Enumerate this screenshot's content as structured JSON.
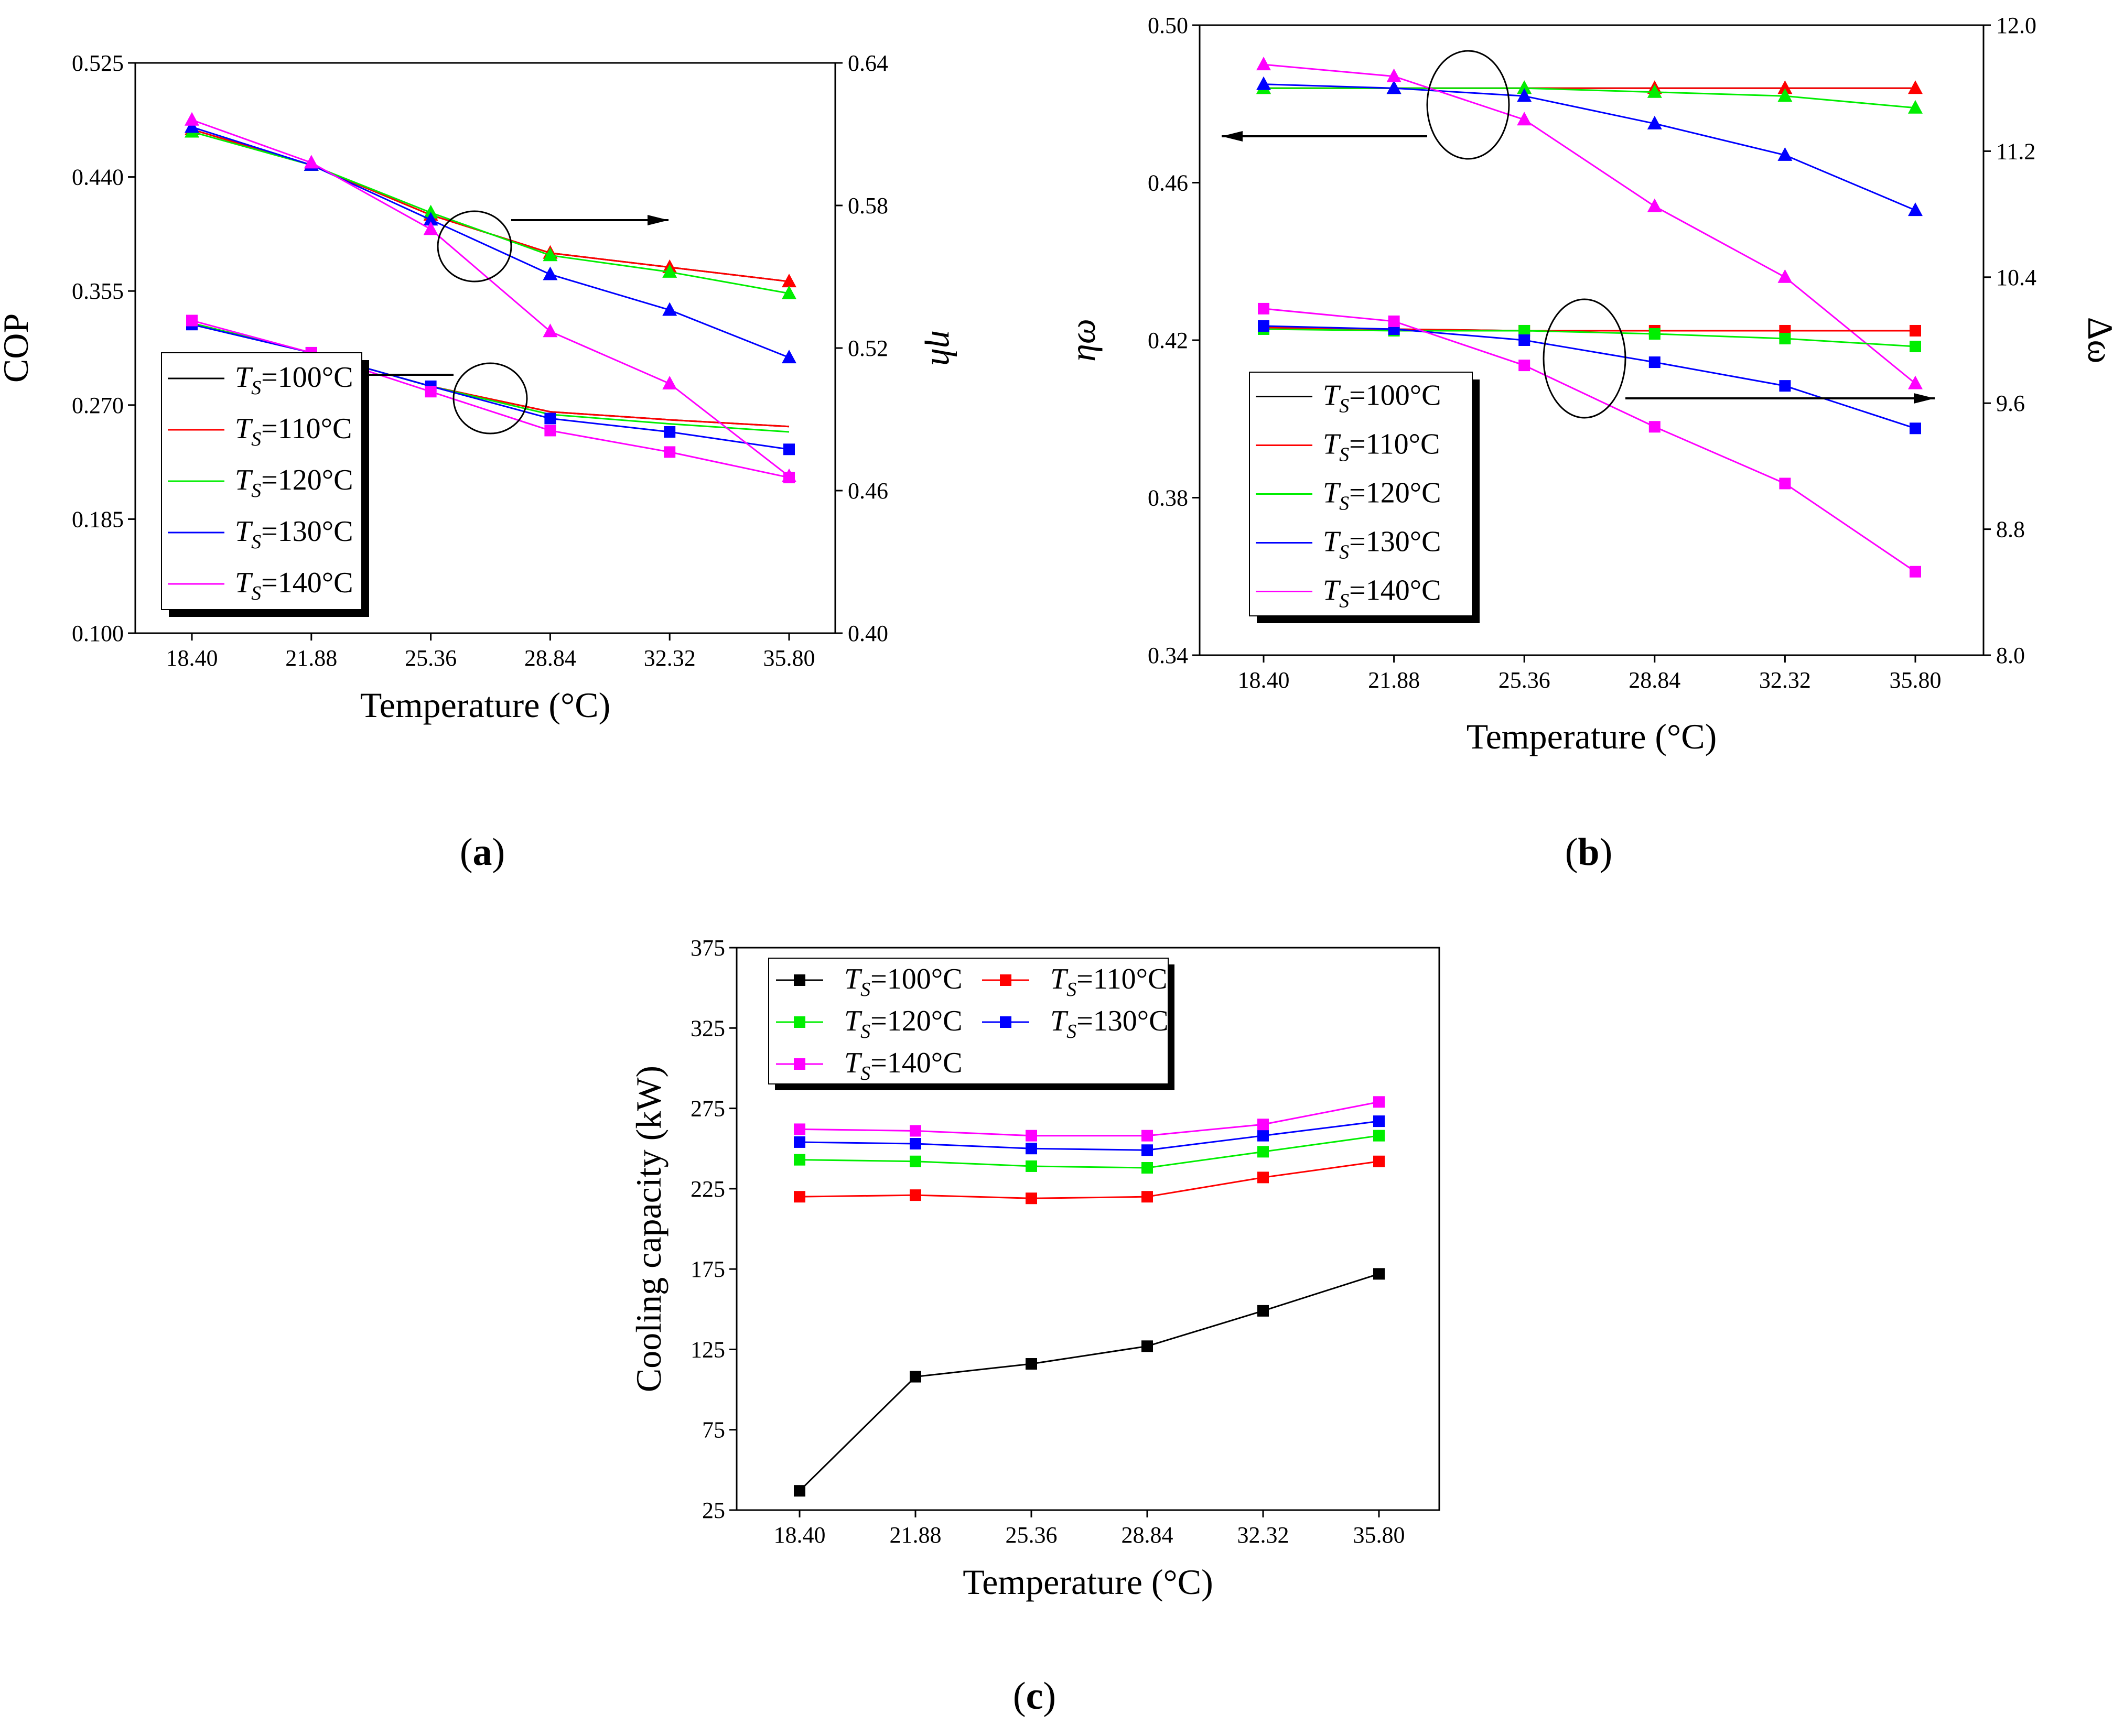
{
  "captions": [
    "a",
    "b",
    "c"
  ],
  "legend": {
    "prefix": "T",
    "subscript": "S",
    "labels": [
      "=100°C",
      "=110°C",
      "=120°C",
      "=130°C",
      "=140°C"
    ],
    "colors": [
      "#000000",
      "#ff0000",
      "#00ee00",
      "#0000ff",
      "#ff00ff"
    ]
  },
  "chart_data": [
    {
      "id": "a",
      "type": "line",
      "xlabel": "Temperature (°C)",
      "ylabel": "COP",
      "y2label": "ηh",
      "categories": [
        "18.40",
        "21.88",
        "25.36",
        "28.84",
        "32.32",
        "35.80"
      ],
      "ylim": [
        0.1,
        0.525
      ],
      "yticks": [
        "0.100",
        "0.185",
        "0.270",
        "0.355",
        "0.440",
        "0.525"
      ],
      "y2lim": [
        0.4,
        0.64
      ],
      "y2ticks": [
        "0.40",
        "0.46",
        "0.52",
        "0.58",
        "0.64"
      ],
      "series_left": [
        {
          "name": "100°C",
          "marker": "none",
          "values": [
            0.331,
            0.309,
            0.284,
            0.265,
            0.259,
            0.254
          ]
        },
        {
          "name": "110°C",
          "marker": "none",
          "values": [
            0.331,
            0.309,
            0.284,
            0.265,
            0.259,
            0.254
          ]
        },
        {
          "name": "120°C",
          "marker": "none",
          "values": [
            0.331,
            0.309,
            0.284,
            0.263,
            0.256,
            0.25
          ]
        },
        {
          "name": "130°C",
          "marker": "square",
          "values": [
            0.33,
            0.309,
            0.284,
            0.26,
            0.25,
            0.237
          ]
        },
        {
          "name": "140°C",
          "marker": "square",
          "values": [
            0.333,
            0.309,
            0.28,
            0.251,
            0.235,
            0.216
          ]
        }
      ],
      "series_right": [
        {
          "name": "100°C",
          "marker": "none",
          "values": [
            0.612,
            0.597,
            0.576,
            0.56,
            0.554,
            0.548
          ]
        },
        {
          "name": "110°C",
          "marker": "triangle",
          "values": [
            0.612,
            0.597,
            0.576,
            0.56,
            0.554,
            0.548
          ]
        },
        {
          "name": "120°C",
          "marker": "triangle",
          "values": [
            0.611,
            0.597,
            0.577,
            0.559,
            0.552,
            0.543
          ]
        },
        {
          "name": "130°C",
          "marker": "triangle",
          "values": [
            0.613,
            0.597,
            0.574,
            0.551,
            0.536,
            0.516
          ]
        },
        {
          "name": "140°C",
          "marker": "triangle",
          "values": [
            0.616,
            0.598,
            0.57,
            0.527,
            0.505,
            0.466
          ]
        }
      ]
    },
    {
      "id": "b",
      "type": "line",
      "xlabel": "Temperature (°C)",
      "ylabel": "ηω",
      "y2label": "Δω",
      "categories": [
        "18.40",
        "21.88",
        "25.36",
        "28.84",
        "32.32",
        "35.80"
      ],
      "ylim": [
        0.34,
        0.5
      ],
      "yticks": [
        "0.34",
        "0.38",
        "0.42",
        "0.46",
        "0.50"
      ],
      "y2lim": [
        8.0,
        12.0
      ],
      "y2ticks": [
        "8.0",
        "8.8",
        "9.6",
        "10.4",
        "11.2",
        "12.0"
      ],
      "series_left": [
        {
          "name": "100°C",
          "marker": "none",
          "values": [
            0.484,
            0.484,
            0.484,
            0.484,
            0.484,
            0.484
          ]
        },
        {
          "name": "110°C",
          "marker": "triangle",
          "values": [
            0.484,
            0.484,
            0.484,
            0.484,
            0.484,
            0.484
          ]
        },
        {
          "name": "120°C",
          "marker": "triangle",
          "values": [
            0.484,
            0.484,
            0.484,
            0.483,
            0.482,
            0.479
          ]
        },
        {
          "name": "130°C",
          "marker": "triangle",
          "values": [
            0.485,
            0.484,
            0.482,
            0.475,
            0.467,
            0.453
          ]
        },
        {
          "name": "140°C",
          "marker": "triangle",
          "values": [
            0.49,
            0.487,
            0.476,
            0.454,
            0.436,
            0.409
          ]
        }
      ],
      "series_right": [
        {
          "name": "100°C",
          "marker": "none",
          "values": [
            10.08,
            10.07,
            10.06,
            10.06,
            10.06,
            10.06
          ]
        },
        {
          "name": "110°C",
          "marker": "square",
          "values": [
            10.08,
            10.07,
            10.06,
            10.06,
            10.06,
            10.06
          ]
        },
        {
          "name": "120°C",
          "marker": "square",
          "values": [
            10.07,
            10.06,
            10.06,
            10.04,
            10.01,
            9.96
          ]
        },
        {
          "name": "130°C",
          "marker": "square",
          "values": [
            10.09,
            10.07,
            10.0,
            9.86,
            9.71,
            9.44
          ]
        },
        {
          "name": "140°C",
          "marker": "square",
          "values": [
            10.2,
            10.12,
            9.84,
            9.45,
            9.09,
            8.53
          ]
        }
      ]
    },
    {
      "id": "c",
      "type": "line",
      "xlabel": "Temperature (°C)",
      "ylabel": "Cooling capacity (kW)",
      "categories": [
        "18.40",
        "21.88",
        "25.36",
        "28.84",
        "32.32",
        "35.80"
      ],
      "ylim": [
        25,
        375
      ],
      "yticks": [
        "25",
        "75",
        "125",
        "175",
        "225",
        "275",
        "325",
        "375"
      ],
      "series": [
        {
          "name": "100°C",
          "values": [
            37,
            108,
            116,
            127,
            149,
            172
          ]
        },
        {
          "name": "110°C",
          "values": [
            220,
            221,
            219,
            220,
            232,
            242
          ]
        },
        {
          "name": "120°C",
          "values": [
            243,
            242,
            239,
            238,
            248,
            258
          ]
        },
        {
          "name": "130°C",
          "values": [
            254,
            253,
            250,
            249,
            258,
            267
          ]
        },
        {
          "name": "140°C",
          "values": [
            262,
            261,
            258,
            258,
            265,
            279
          ]
        }
      ]
    }
  ]
}
